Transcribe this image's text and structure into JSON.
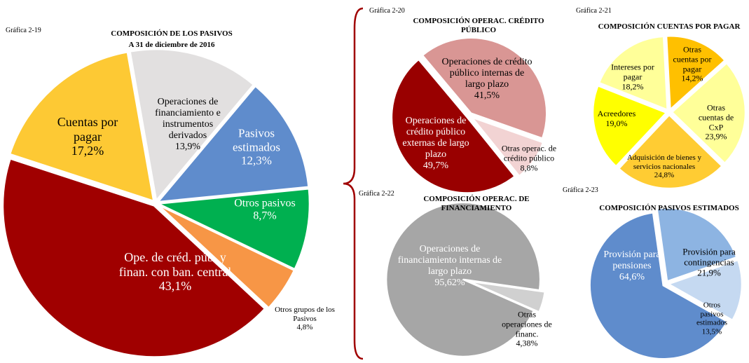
{
  "chart_data": [
    {
      "type": "pie",
      "figure": "Gráfica 2-19",
      "title": "COMPOSICIÓN DE LOS PASIVOS",
      "subtitle": "A 31 de diciembre de 2016",
      "categories": [
        "Operaciones de financiamiento e instrumentos derivados",
        "Pasivos estimados",
        "Otros pasivos",
        "Otros grupos de los Pasivos",
        "Ope. de créd. púb. y finan. con ban. central",
        "Cuentas por pagar"
      ],
      "values": [
        13.9,
        12.3,
        8.7,
        4.8,
        43.1,
        17.2
      ],
      "value_labels": [
        "13,9%",
        "12,3%",
        "8,7%",
        "4,8%",
        "43,1%",
        "17,2%"
      ],
      "colors": [
        "#e2e0e0",
        "#5f8ccc",
        "#00b050",
        "#f79646",
        "#a00000",
        "#fdc934"
      ]
    },
    {
      "type": "pie",
      "figure": "Gráfica 2-20",
      "title": "COMPOSICIÓN OPERAC. CRÉDITO PÚBLICO",
      "categories": [
        "Operaciones de crédito público internas de largo plazo",
        "Otras operac. de crédito público",
        "Operaciones de crédito público externas de largo plazo"
      ],
      "values": [
        41.5,
        8.8,
        49.7
      ],
      "value_labels": [
        "41,5%",
        "8,8%",
        "49,7%"
      ],
      "colors": [
        "#d99694",
        "#f2d3d3",
        "#990000"
      ]
    },
    {
      "type": "pie",
      "figure": "Gráfica 2-21",
      "title": "COMPOSICIÓN CUENTAS POR PAGAR",
      "categories": [
        "Otras cuentas por pagar",
        "Otras cuentas de CxP",
        "Adquisición de bienes y servicios nacionales",
        "Acreedores",
        "Intereses por pagar"
      ],
      "values": [
        14.2,
        23.9,
        24.8,
        19.0,
        18.2
      ],
      "value_labels": [
        "14,2%",
        "23,9%",
        "24,8%",
        "19,0%",
        "18,2%"
      ],
      "colors": [
        "#ffc000",
        "#ffff99",
        "#ffcc33",
        "#ffff00",
        "#ffff99"
      ]
    },
    {
      "type": "pie",
      "figure": "Gráfica 2-22",
      "title": "COMPOSICIÓN OPERAC. DE FINANCIAMIENTO",
      "categories": [
        "Otras operaciones de financ.",
        "Operaciones de financiamiento internas de largo plazo"
      ],
      "values": [
        4.38,
        95.62
      ],
      "value_labels": [
        "4,38%",
        "95,62%"
      ],
      "colors": [
        "#d0d0d0",
        "#a6a6a6"
      ]
    },
    {
      "type": "pie",
      "figure": "Gráfica 2-23",
      "title": "COMPOSICIÓN PASIVOS ESTIMADOS",
      "categories": [
        "Provisión para contingencias",
        "Otros pasivos estimados",
        "Provisión para pensiones"
      ],
      "values": [
        21.9,
        13.5,
        64.6
      ],
      "value_labels": [
        "21,9%",
        "13,5%",
        "64,6%"
      ],
      "colors": [
        "#8db4e2",
        "#c5d9f1",
        "#5f8ccc"
      ]
    }
  ]
}
